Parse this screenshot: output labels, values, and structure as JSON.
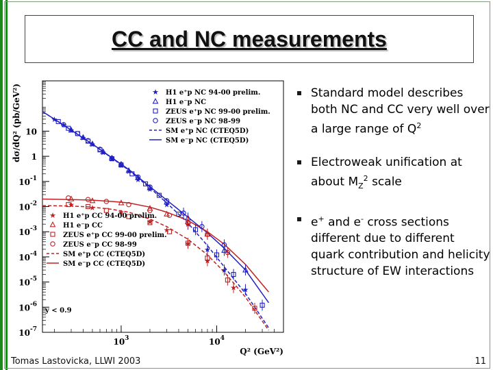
{
  "title": "CC and NC measurements",
  "bullets": {
    "b1": {
      "text": "Standard model describes both NC and CC very well over a large range of Q",
      "sup": "2"
    },
    "b2": {
      "pre": "Electroweak unification at about M",
      "sub": "Z",
      "sup": "2",
      "post": " scale"
    },
    "b3": {
      "a": "e",
      "a_sup": "+",
      "b": " and e",
      "b_sup": "-",
      "c": " cross sections different due to different quark contribution and helicity structure of EW interactions"
    }
  },
  "footer": {
    "author": "Tomas Lastovicka, LLWI 2003",
    "page": "11"
  },
  "colors": {
    "nc": "#2020c0",
    "cc": "#c02020",
    "accent_green": "#1a8a1a"
  },
  "chart_data": {
    "type": "scatter",
    "xscale": "log",
    "yscale": "log",
    "xlim": [
      150,
      50000
    ],
    "ylim": [
      1e-07,
      1000
    ],
    "xlabel": "Q² (GeV²)",
    "ylabel": "dσ/dQ² (pb/GeV²)",
    "y_ticks": [
      {
        "v": 10,
        "label": "10"
      },
      {
        "v": 1,
        "label": "1"
      },
      {
        "v": 0.1,
        "label": "10",
        "exp": "-1"
      },
      {
        "v": 0.01,
        "label": "10",
        "exp": "-2"
      },
      {
        "v": 0.001,
        "label": "10",
        "exp": "-3"
      },
      {
        "v": 0.0001,
        "label": "10",
        "exp": "-4"
      },
      {
        "v": 1e-05,
        "label": "10",
        "exp": "-5"
      },
      {
        "v": 1e-06,
        "label": "10",
        "exp": "-6"
      },
      {
        "v": 1e-07,
        "label": "10",
        "exp": "-7"
      }
    ],
    "x_ticks": [
      {
        "v": 1000,
        "label": "10",
        "exp": "3"
      },
      {
        "v": 10000,
        "label": "10",
        "exp": "4"
      }
    ],
    "annotation": "y < 0.9",
    "legend_nc": [
      {
        "label": "H1 e⁺p NC 94-00 prelim.",
        "marker": "star"
      },
      {
        "label": "H1 e⁻p NC",
        "marker": "triangle"
      },
      {
        "label": "ZEUS e⁺p NC 99-00 prelim.",
        "marker": "square"
      },
      {
        "label": "ZEUS e⁻p NC 98-99",
        "marker": "circle"
      },
      {
        "label": "SM e⁺p NC (CTEQ5D)",
        "marker": "dashed"
      },
      {
        "label": "SM e⁻p NC (CTEQ5D)",
        "marker": "solid"
      }
    ],
    "legend_cc": [
      {
        "label": "H1 e⁺p CC 94-00 prelim.",
        "marker": "star"
      },
      {
        "label": "H1 e⁻p CC",
        "marker": "triangle"
      },
      {
        "label": "ZEUS e⁺p CC 99-00 prelim.",
        "marker": "square"
      },
      {
        "label": "ZEUS e⁻p CC 98-99",
        "marker": "circle"
      },
      {
        "label": "SM e⁺p CC (CTEQ5D)",
        "marker": "dashed"
      },
      {
        "label": "SM e⁻p CC (CTEQ5D)",
        "marker": "solid"
      }
    ],
    "series": [
      {
        "name": "H1 e⁺p NC 94-00 prelim.",
        "group": "nc",
        "marker": "star",
        "x": [
          200,
          250,
          300,
          400,
          500,
          650,
          800,
          1000,
          1200,
          1500,
          2000,
          3000,
          5000,
          8000,
          12000,
          20000
        ],
        "y": [
          30,
          18,
          11,
          5.5,
          3,
          1.4,
          0.8,
          0.45,
          0.25,
          0.12,
          0.05,
          0.012,
          0.002,
          0.0002,
          3e-05,
          5e-06
        ]
      },
      {
        "name": "H1 e⁻p NC",
        "group": "nc",
        "marker": "triangle",
        "x": [
          300,
          400,
          500,
          650,
          800,
          1000,
          1200,
          1500,
          2000,
          3000,
          5000,
          8000,
          12000,
          20000
        ],
        "y": [
          11,
          5.6,
          3.1,
          1.5,
          0.85,
          0.48,
          0.27,
          0.14,
          0.055,
          0.015,
          0.0035,
          0.0008,
          0.00018,
          3e-05
        ]
      },
      {
        "name": "ZEUS e⁺p NC 99-00 prelim.",
        "group": "nc",
        "marker": "square",
        "x": [
          220,
          280,
          350,
          450,
          600,
          800,
          1000,
          1300,
          1800,
          2500,
          4000,
          6000,
          10000,
          15000,
          30000
        ],
        "y": [
          24,
          13,
          8,
          4,
          1.8,
          0.8,
          0.45,
          0.2,
          0.08,
          0.028,
          0.005,
          0.0012,
          0.00012,
          2e-05,
          1.2e-06
        ]
      },
      {
        "name": "ZEUS e⁻p NC 98-99",
        "group": "nc",
        "marker": "circle",
        "x": [
          250,
          350,
          450,
          600,
          800,
          1000,
          1500,
          2000,
          3000,
          4500,
          7000,
          12000
        ],
        "y": [
          18,
          8,
          4.2,
          1.9,
          0.82,
          0.47,
          0.15,
          0.06,
          0.017,
          0.0055,
          0.0016,
          0.0003
        ]
      },
      {
        "name": "H1 e⁺p CC 94-00 prelim.",
        "group": "cc",
        "marker": "star",
        "x": [
          300,
          500,
          1000,
          2000,
          3000,
          5000,
          8000,
          15000
        ],
        "y": [
          0.012,
          0.009,
          0.006,
          0.0025,
          0.0012,
          0.00035,
          7e-05,
          6e-06
        ]
      },
      {
        "name": "H1 e⁻p CC",
        "group": "cc",
        "marker": "triangle",
        "x": [
          300,
          500,
          1000,
          2000,
          3000,
          5000,
          8000
        ],
        "y": [
          0.02,
          0.017,
          0.014,
          0.0085,
          0.005,
          0.0025,
          0.0008
        ]
      },
      {
        "name": "ZEUS e⁺p CC 99-00 prelim.",
        "group": "cc",
        "marker": "square",
        "x": [
          280,
          450,
          700,
          1200,
          2000,
          3200,
          5000,
          8000,
          13000,
          25000
        ],
        "y": [
          0.012,
          0.01,
          0.007,
          0.004,
          0.0023,
          0.001,
          0.00035,
          9e-05,
          1.2e-05,
          9e-07
        ]
      },
      {
        "name": "ZEUS e⁻p CC 98-99",
        "group": "cc",
        "marker": "circle",
        "x": [
          280,
          450,
          700,
          1200,
          2000,
          3200,
          5000,
          8000,
          13000
        ],
        "y": [
          0.022,
          0.019,
          0.016,
          0.012,
          0.007,
          0.0045,
          0.0022,
          0.0008,
          0.00015
        ]
      }
    ],
    "curves": [
      {
        "name": "SM e⁺p NC (CTEQ5D)",
        "style": "dashed",
        "color": "#2020c0",
        "x": [
          150,
          200,
          300,
          500,
          800,
          1200,
          2000,
          3000,
          5000,
          8000,
          12000,
          20000,
          35000
        ],
        "y": [
          60,
          30,
          11,
          3,
          0.85,
          0.28,
          0.055,
          0.014,
          0.0022,
          0.00028,
          4e-05,
          3.5e-06,
          1.5e-07
        ]
      },
      {
        "name": "SM e⁻p NC (CTEQ5D)",
        "style": "solid",
        "color": "#2020c0",
        "x": [
          150,
          200,
          300,
          500,
          800,
          1200,
          2000,
          3000,
          5000,
          8000,
          12000,
          20000,
          35000
        ],
        "y": [
          60,
          30,
          11,
          3.05,
          0.88,
          0.3,
          0.062,
          0.018,
          0.0038,
          0.0009,
          0.00022,
          3e-05,
          1.5e-06
        ]
      },
      {
        "name": "SM e⁺p CC (CTEQ5D)",
        "style": "dashed",
        "color": "#c02020",
        "x": [
          150,
          300,
          500,
          800,
          1200,
          2000,
          3000,
          5000,
          8000,
          12000,
          20000,
          35000
        ],
        "y": [
          0.011,
          0.0105,
          0.0095,
          0.0078,
          0.006,
          0.0032,
          0.0016,
          0.0005,
          0.00012,
          2.5e-05,
          2.5e-06,
          1.2e-07
        ]
      },
      {
        "name": "SM e⁻p CC (CTEQ5D)",
        "style": "solid",
        "color": "#c02020",
        "x": [
          150,
          300,
          500,
          800,
          1200,
          2000,
          3000,
          5000,
          8000,
          12000,
          20000,
          35000
        ],
        "y": [
          0.02,
          0.019,
          0.018,
          0.016,
          0.014,
          0.0095,
          0.006,
          0.0028,
          0.001,
          0.00032,
          5e-05,
          4e-06
        ]
      }
    ]
  }
}
